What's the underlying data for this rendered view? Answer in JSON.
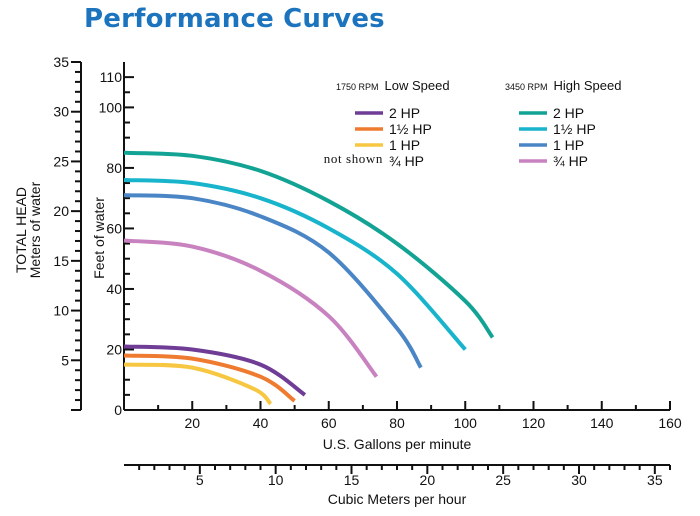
{
  "title": "Performance Curves",
  "chart_data": {
    "type": "line",
    "title": "Performance Curves",
    "x_primary": {
      "label": "U.S. Gallons per minute",
      "range": [
        0,
        160
      ],
      "ticks": [
        20,
        40,
        60,
        80,
        100,
        120,
        140,
        160
      ],
      "tick_labels": [
        "20",
        "40",
        "60",
        "80",
        "100",
        "120",
        "140",
        "160"
      ]
    },
    "x_secondary": {
      "label": "Cubic Meters per hour",
      "range": [
        0,
        36
      ],
      "ticks": [
        5,
        10,
        15,
        20,
        25,
        30,
        35
      ],
      "tick_labels": [
        "5",
        "10",
        "15",
        "20",
        "25",
        "30",
        "35"
      ]
    },
    "y_primary": {
      "label": "Feet of water",
      "range": [
        0,
        115
      ],
      "ticks": [
        0,
        20,
        40,
        60,
        80,
        100,
        110
      ],
      "tick_labels": [
        "0",
        "20",
        "40",
        "60",
        "80",
        "100",
        "110"
      ]
    },
    "y_secondary": {
      "label_line1": "TOTAL HEAD",
      "label_line2": "Meters of water",
      "range": [
        0,
        35
      ],
      "ticks": [
        5,
        10,
        15,
        20,
        25,
        30,
        35
      ],
      "tick_labels": [
        "5",
        "10",
        "15",
        "20",
        "25",
        "30",
        "35"
      ]
    },
    "legend": {
      "low": {
        "rpm": "1750 RPM",
        "speed": "Low Speed",
        "items": [
          "2 HP",
          "1½ HP",
          "1 HP",
          "¾ HP"
        ],
        "not_shown": "not shown"
      },
      "high": {
        "rpm": "3450 RPM",
        "speed": "High Speed",
        "items": [
          "2 HP",
          "1½ HP",
          "1 HP",
          "¾ HP"
        ]
      }
    },
    "series": [
      {
        "name": "3450 RPM 2 HP",
        "color": "#12a394",
        "x": [
          0,
          20,
          40,
          60,
          80,
          100,
          108
        ],
        "y": [
          85,
          84,
          79,
          69,
          55,
          36,
          24
        ]
      },
      {
        "name": "3450 RPM 1½ HP",
        "color": "#18b4cc",
        "x": [
          0,
          20,
          40,
          60,
          80,
          100
        ],
        "y": [
          76,
          75,
          70,
          60,
          45,
          20
        ]
      },
      {
        "name": "3450 RPM 1 HP",
        "color": "#4a86c5",
        "x": [
          0,
          20,
          40,
          60,
          80,
          87
        ],
        "y": [
          71,
          70,
          64,
          52,
          27,
          14
        ]
      },
      {
        "name": "3450 RPM ¾ HP",
        "color": "#c882c0",
        "x": [
          0,
          20,
          40,
          60,
          74
        ],
        "y": [
          56,
          54,
          46,
          31,
          11
        ]
      },
      {
        "name": "1750 RPM 2 HP",
        "color": "#6f3d96",
        "x": [
          0,
          20,
          40,
          53
        ],
        "y": [
          21,
          20,
          15,
          5
        ]
      },
      {
        "name": "1750 RPM 1½ HP",
        "color": "#ee7b30",
        "x": [
          0,
          20,
          40,
          50
        ],
        "y": [
          18,
          17,
          11,
          3
        ]
      },
      {
        "name": "1750 RPM 1 HP",
        "color": "#f7c742",
        "x": [
          0,
          20,
          38,
          43
        ],
        "y": [
          15,
          14,
          7,
          2
        ]
      }
    ]
  }
}
